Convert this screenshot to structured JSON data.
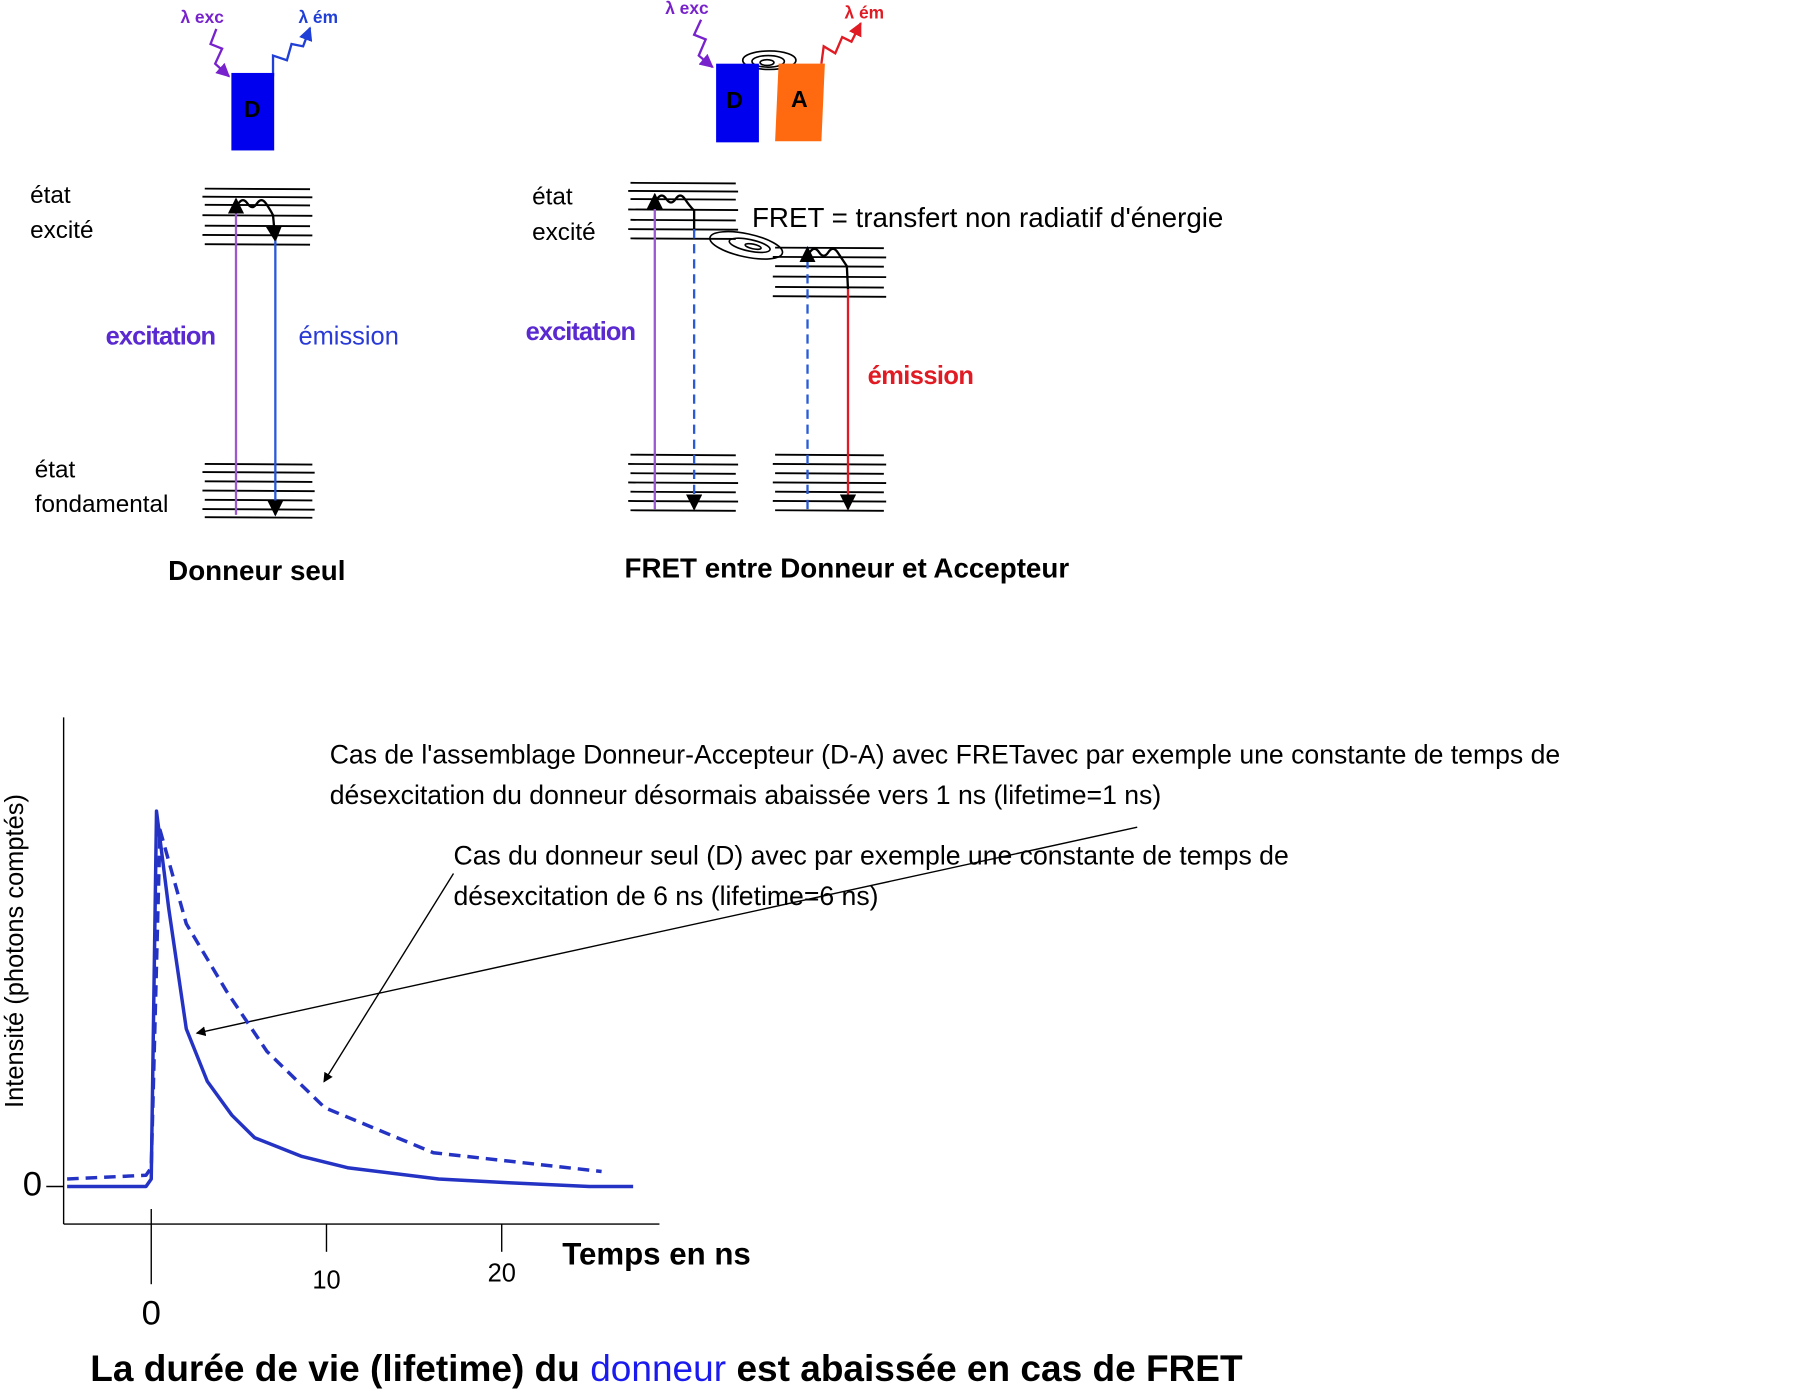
{
  "donor_alone": {
    "label_exc": "λ exc",
    "label_em": "λ ém",
    "molecule": "D",
    "excited": [
      "état",
      "excité"
    ],
    "ground": [
      "état",
      "fondamental"
    ],
    "excitation": "excitation",
    "emission": "émission",
    "caption": "Donneur seul"
  },
  "fret": {
    "label_exc": "λ exc",
    "label_em": "λ ém",
    "donor": "D",
    "acceptor": "A",
    "excited": [
      "état",
      "excité"
    ],
    "fret_note": "FRET = transfert non radiatif d'énergie",
    "excitation": "excitation",
    "emission": "émission",
    "caption": "FRET entre Donneur et Accepteur"
  },
  "chart_data": {
    "type": "line",
    "ylabel": "Intensité (photons comptés)",
    "xlabel": "Temps en ns",
    "xlim": [
      -5,
      29
    ],
    "ylim": [
      -0.1,
      1.25
    ],
    "xticks": [
      0,
      10,
      20
    ],
    "yticks": [
      0
    ],
    "annotations": [
      [
        "Cas de l'assemblage Donneur-Accepteur (D-A) avec FRETavec par exemple une constante de temps de",
        "désexcitation du donneur désormais abaissée vers 1 ns (lifetime=1 ns)"
      ],
      [
        "Cas du donneur seul (D) avec par exemple une constante de temps de",
        "désexcitation de 6 ns (lifetime=6 ns)"
      ]
    ],
    "series": [
      {
        "color": "#2433c4",
        "dash": false,
        "x": [
          -4.8,
          -0.3,
          0,
          0.3,
          1.0,
          2.0,
          3.2,
          4.6,
          5.9,
          8.6,
          11.2,
          16.4,
          20.4,
          25,
          27.5
        ],
        "values": [
          0,
          0,
          0.02,
          1.0,
          0.74,
          0.42,
          0.28,
          0.19,
          0.13,
          0.08,
          0.05,
          0.02,
          0.01,
          0,
          0
        ]
      },
      {
        "color": "#2433c4",
        "dash": true,
        "x": [
          -4.8,
          -0.3,
          0,
          0.5,
          2.0,
          4.3,
          6.6,
          9.9,
          16.1,
          25.7
        ],
        "values": [
          0.02,
          0.03,
          0.05,
          0.95,
          0.7,
          0.52,
          0.36,
          0.21,
          0.09,
          0.04
        ]
      }
    ]
  },
  "conclusion": {
    "before": "La durée de vie (lifetime) du",
    "highlight": "donneur",
    "after": "est abaissée en cas de FRET"
  }
}
